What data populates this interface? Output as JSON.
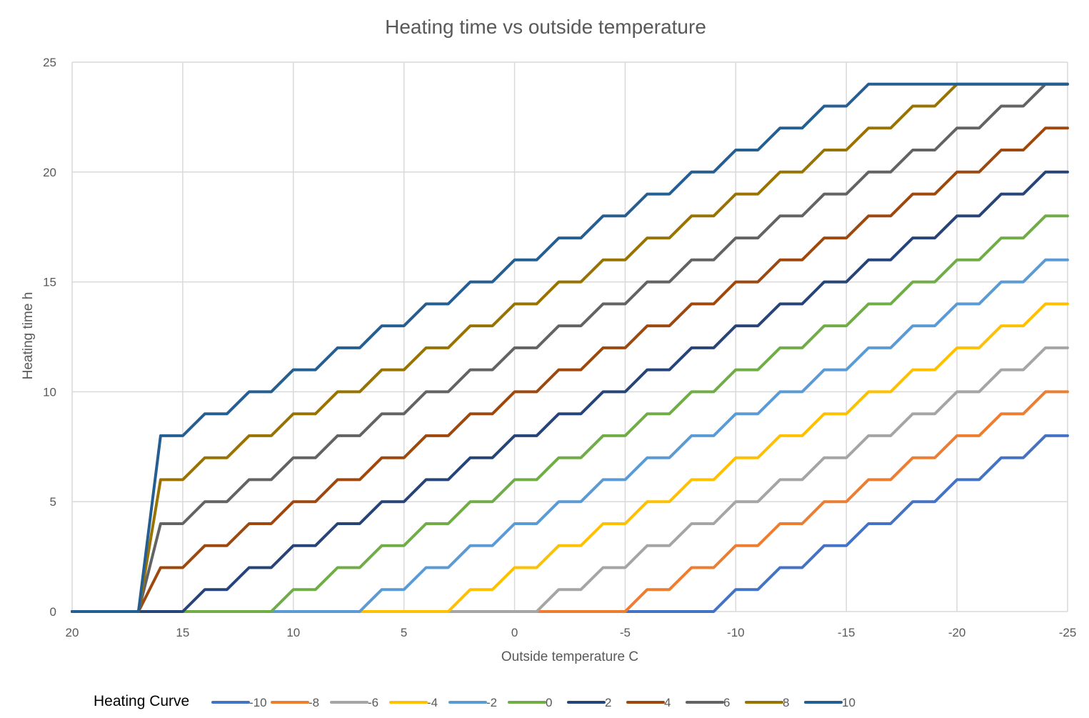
{
  "chart_data": {
    "type": "line",
    "title": "Heating time vs outside temperature",
    "xlabel": "Outside temperature  C",
    "ylabel": "Heating time h",
    "xlim": [
      20,
      -25
    ],
    "ylim": [
      0,
      25
    ],
    "x_reversed": true,
    "xticks": [
      20,
      15,
      10,
      5,
      0,
      -5,
      -10,
      -15,
      -20,
      -25
    ],
    "yticks": [
      0,
      5,
      10,
      15,
      20,
      25
    ],
    "grid": true,
    "legend_title": "Heating Curve",
    "legend_position": "bottom",
    "x": [
      20,
      17,
      16,
      15,
      14,
      13,
      12,
      11,
      10,
      9,
      8,
      7,
      6,
      5,
      4,
      3,
      2,
      1,
      0,
      -1,
      -2,
      -3,
      -4,
      -5,
      -6,
      -7,
      -8,
      -9,
      -10,
      -11,
      -12,
      -13,
      -14,
      -15,
      -16,
      -17,
      -18,
      -19,
      -20,
      -21,
      -22,
      -23,
      -24,
      -25
    ],
    "series": [
      {
        "name": "-10",
        "color": "#4472C4",
        "values": [
          0,
          0,
          0,
          0,
          0,
          0,
          0,
          0,
          0,
          0,
          0,
          0,
          0,
          0,
          0,
          0,
          0,
          0,
          0,
          0,
          0,
          0,
          0,
          0,
          0,
          0,
          0,
          0,
          1,
          1,
          2,
          2,
          3,
          3,
          4,
          4,
          5,
          5,
          6,
          6,
          7,
          7,
          8,
          8
        ]
      },
      {
        "name": "-8",
        "color": "#ED7D31",
        "values": [
          0,
          0,
          0,
          0,
          0,
          0,
          0,
          0,
          0,
          0,
          0,
          0,
          0,
          0,
          0,
          0,
          0,
          0,
          0,
          0,
          0,
          0,
          0,
          0,
          1,
          1,
          2,
          2,
          3,
          3,
          4,
          4,
          5,
          5,
          6,
          6,
          7,
          7,
          8,
          8,
          9,
          9,
          10,
          10
        ]
      },
      {
        "name": "-6",
        "color": "#A5A5A5",
        "values": [
          0,
          0,
          0,
          0,
          0,
          0,
          0,
          0,
          0,
          0,
          0,
          0,
          0,
          0,
          0,
          0,
          0,
          0,
          0,
          0,
          1,
          1,
          2,
          2,
          3,
          3,
          4,
          4,
          5,
          5,
          6,
          6,
          7,
          7,
          8,
          8,
          9,
          9,
          10,
          10,
          11,
          11,
          12,
          12
        ]
      },
      {
        "name": "-4",
        "color": "#FFC000",
        "values": [
          0,
          0,
          0,
          0,
          0,
          0,
          0,
          0,
          0,
          0,
          0,
          0,
          0,
          0,
          0,
          0,
          1,
          1,
          2,
          2,
          3,
          3,
          4,
          4,
          5,
          5,
          6,
          6,
          7,
          7,
          8,
          8,
          9,
          9,
          10,
          10,
          11,
          11,
          12,
          12,
          13,
          13,
          14,
          14
        ]
      },
      {
        "name": "-2",
        "color": "#5B9BD5",
        "values": [
          0,
          0,
          0,
          0,
          0,
          0,
          0,
          0,
          0,
          0,
          0,
          0,
          1,
          1,
          2,
          2,
          3,
          3,
          4,
          4,
          5,
          5,
          6,
          6,
          7,
          7,
          8,
          8,
          9,
          9,
          10,
          10,
          11,
          11,
          12,
          12,
          13,
          13,
          14,
          14,
          15,
          15,
          16,
          16
        ]
      },
      {
        "name": "0",
        "color": "#70AD47",
        "values": [
          0,
          0,
          0,
          0,
          0,
          0,
          0,
          0,
          1,
          1,
          2,
          2,
          3,
          3,
          4,
          4,
          5,
          5,
          6,
          6,
          7,
          7,
          8,
          8,
          9,
          9,
          10,
          10,
          11,
          11,
          12,
          12,
          13,
          13,
          14,
          14,
          15,
          15,
          16,
          16,
          17,
          17,
          18,
          18
        ]
      },
      {
        "name": "2",
        "color": "#264478",
        "values": [
          0,
          0,
          0,
          0,
          1,
          1,
          2,
          2,
          3,
          3,
          4,
          4,
          5,
          5,
          6,
          6,
          7,
          7,
          8,
          8,
          9,
          9,
          10,
          10,
          11,
          11,
          12,
          12,
          13,
          13,
          14,
          14,
          15,
          15,
          16,
          16,
          17,
          17,
          18,
          18,
          19,
          19,
          20,
          20
        ]
      },
      {
        "name": "4",
        "color": "#9E480E",
        "values": [
          0,
          0,
          2,
          2,
          3,
          3,
          4,
          4,
          5,
          5,
          6,
          6,
          7,
          7,
          8,
          8,
          9,
          9,
          10,
          10,
          11,
          11,
          12,
          12,
          13,
          13,
          14,
          14,
          15,
          15,
          16,
          16,
          17,
          17,
          18,
          18,
          19,
          19,
          20,
          20,
          21,
          21,
          22,
          22
        ]
      },
      {
        "name": "6",
        "color": "#636363",
        "values": [
          0,
          0,
          4,
          4,
          5,
          5,
          6,
          6,
          7,
          7,
          8,
          8,
          9,
          9,
          10,
          10,
          11,
          11,
          12,
          12,
          13,
          13,
          14,
          14,
          15,
          15,
          16,
          16,
          17,
          17,
          18,
          18,
          19,
          19,
          20,
          20,
          21,
          21,
          22,
          22,
          23,
          23,
          24,
          24
        ]
      },
      {
        "name": "8",
        "color": "#997300",
        "values": [
          0,
          0,
          6,
          6,
          7,
          7,
          8,
          8,
          9,
          9,
          10,
          10,
          11,
          11,
          12,
          12,
          13,
          13,
          14,
          14,
          15,
          15,
          16,
          16,
          17,
          17,
          18,
          18,
          19,
          19,
          20,
          20,
          21,
          21,
          22,
          22,
          23,
          23,
          24,
          24,
          24,
          24,
          24,
          24
        ]
      },
      {
        "name": "10",
        "color": "#255E91",
        "values": [
          0,
          0,
          8,
          8,
          9,
          9,
          10,
          10,
          11,
          11,
          12,
          12,
          13,
          13,
          14,
          14,
          15,
          15,
          16,
          16,
          17,
          17,
          18,
          18,
          19,
          19,
          20,
          20,
          21,
          21,
          22,
          22,
          23,
          23,
          24,
          24,
          24,
          24,
          24,
          24,
          24,
          24,
          24,
          24
        ]
      }
    ]
  }
}
